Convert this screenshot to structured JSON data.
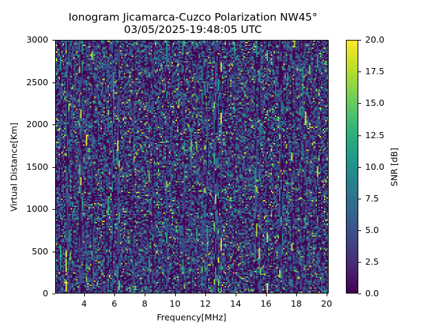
{
  "title": {
    "line1": "Ionogram Jicamarca-Cuzco Polarization NW45°",
    "line2": "03/05/2025-19:48:05 UTC"
  },
  "axes": {
    "xlabel": "Frequency[MHz]",
    "ylabel": "Virtual Distance[Km]",
    "xticks": [
      "4",
      "6",
      "8",
      "10",
      "12",
      "14",
      "16",
      "18",
      "20"
    ],
    "yticks": [
      "0",
      "500",
      "1000",
      "1500",
      "2000",
      "2500",
      "3000"
    ]
  },
  "colorbar": {
    "label": "SNR [dB]",
    "ticks": [
      "0.0",
      "2.5",
      "5.0",
      "7.5",
      "10.0",
      "12.5",
      "15.0",
      "17.5",
      "20.0"
    ],
    "colormap": "viridis",
    "min_color": "#440154",
    "max_color": "#fde725"
  },
  "chart_data": {
    "type": "heatmap",
    "title": "Ionogram Jicamarca-Cuzco Polarization NW45° 03/05/2025-19:48:05 UTC",
    "xlabel": "Frequency[MHz]",
    "ylabel": "Virtual Distance[Km]",
    "xlim": [
      2.0,
      20.1
    ],
    "ylim": [
      0,
      3000
    ],
    "xticks": [
      4,
      6,
      8,
      10,
      12,
      14,
      16,
      18,
      20
    ],
    "yticks": [
      0,
      500,
      1000,
      1500,
      2000,
      2500,
      3000
    ],
    "colorbar": {
      "label": "SNR [dB]",
      "range": [
        0.0,
        20.0
      ],
      "ticks": [
        0.0,
        2.5,
        5.0,
        7.5,
        10.0,
        12.5,
        15.0,
        17.5,
        20.0
      ],
      "colormap": "viridis"
    },
    "description": "Noise-dominated ionogram: mostly low SNR (0-5 dB) with vertical streaks of higher SNR (up to ~20 dB); notable bright streaks near 4.5-5.5 MHz at 2300-2800 km, 7.8 MHz near 2000 km, and scattered high-SNR points 14-19 MHz between 500 and 2000 km.",
    "grid": false
  }
}
